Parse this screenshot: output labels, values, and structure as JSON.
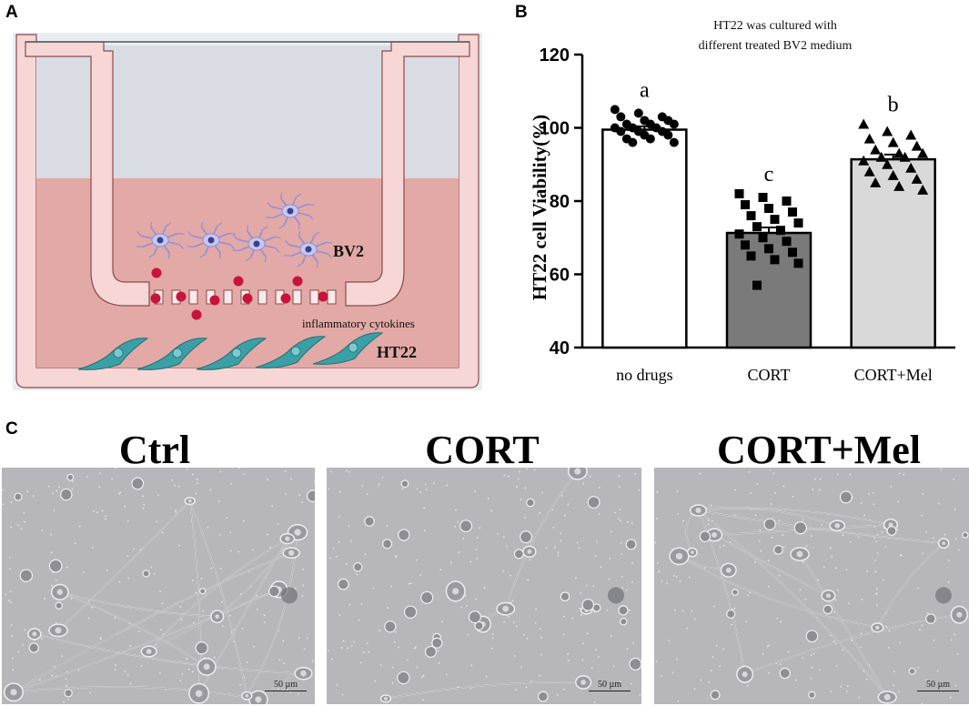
{
  "panel_labels": {
    "a": "A",
    "b": "B",
    "c": "C"
  },
  "schematic": {
    "bv2_label": "BV2",
    "cytokines_label": "inflammatory cytokines",
    "ht22_label": "HT22",
    "colors": {
      "insert": "#f7d6d6",
      "insert_stroke": "#8a4a4a",
      "upper_medium": "#d9dde3",
      "lower_medium": "#e2a9a6",
      "cytokine": "#c8143c",
      "neuron": "#3aa0a6",
      "microglia": "#8f8fd6"
    }
  },
  "chart_data": {
    "type": "bar",
    "title": "HT22 was cultured with different treated BV2 medium",
    "title_lines": [
      "HT22 was cultured with",
      "different treated BV2 medium"
    ],
    "ylabel": "HT22 cell Viability(%)",
    "xlabel": "",
    "ylim": [
      40,
      120
    ],
    "yticks": [
      40,
      60,
      80,
      100,
      120
    ],
    "grid": false,
    "categories": [
      "no drugs",
      "CORT",
      "CORT+Mel"
    ],
    "values": [
      99.5,
      71.3,
      91.4
    ],
    "sem": [
      0.9,
      1.5,
      1.3
    ],
    "bar_colors": [
      "#ffffff",
      "#7a7a7a",
      "#d9d9d9"
    ],
    "significance_letters": [
      "a",
      "c",
      "b"
    ],
    "points": [
      {
        "marker": "circle",
        "values": [
          105,
          104,
          103,
          103,
          102,
          102,
          101,
          101,
          101,
          100,
          100,
          100,
          99,
          99,
          99,
          98,
          98,
          97,
          97,
          96,
          96
        ]
      },
      {
        "marker": "square",
        "values": [
          82,
          81,
          80,
          79,
          78,
          77,
          76,
          75,
          74,
          73,
          72,
          71,
          70,
          69,
          68,
          67,
          66,
          65,
          64,
          63,
          57
        ]
      },
      {
        "marker": "triangle",
        "values": [
          101,
          99,
          98,
          97,
          96,
          95,
          94,
          93,
          93,
          92,
          92,
          91,
          90,
          89,
          88,
          87,
          86,
          85,
          84,
          83
        ]
      }
    ]
  },
  "micrographs": [
    {
      "title": "Ctrl",
      "scale_label": "50 µm"
    },
    {
      "title": "CORT",
      "scale_label": "50 µm"
    },
    {
      "title": "CORT+Mel",
      "scale_label": "50 µm"
    }
  ]
}
